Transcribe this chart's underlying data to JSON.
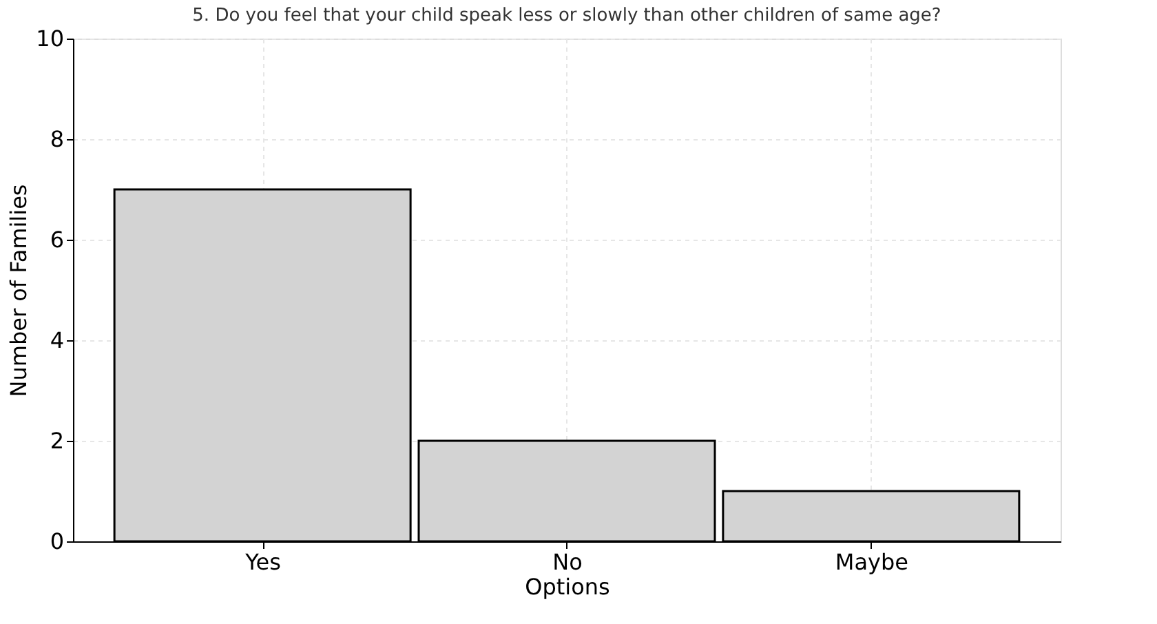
{
  "chart_data": {
    "type": "bar",
    "title": "5. Do you feel that your child speak less or slowly than other children of same age?",
    "xlabel": "Options",
    "ylabel": "Number of Families",
    "categories": [
      "Yes",
      "No",
      "Maybe"
    ],
    "values": [
      7,
      2,
      1
    ],
    "color": "#d3d3d3",
    "ylim": [
      0,
      10
    ],
    "yticks": [
      0,
      2,
      4,
      6,
      8,
      10
    ],
    "grid": true
  }
}
